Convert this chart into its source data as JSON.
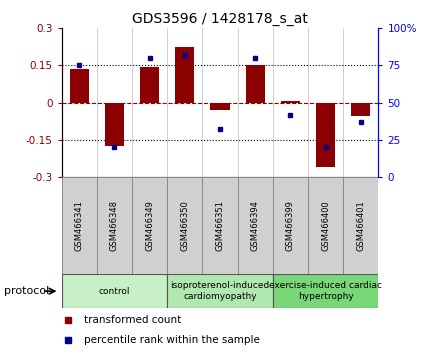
{
  "title": "GDS3596 / 1428178_s_at",
  "samples": [
    "GSM466341",
    "GSM466348",
    "GSM466349",
    "GSM466350",
    "GSM466351",
    "GSM466394",
    "GSM466399",
    "GSM466400",
    "GSM466401"
  ],
  "bar_values": [
    0.135,
    -0.175,
    0.145,
    0.225,
    -0.03,
    0.15,
    0.005,
    -0.26,
    -0.055
  ],
  "dot_values": [
    75,
    20,
    80,
    82,
    32,
    80,
    42,
    20,
    37
  ],
  "left_ylim": [
    -0.3,
    0.3
  ],
  "right_ylim": [
    0,
    100
  ],
  "left_yticks": [
    -0.3,
    -0.15,
    0,
    0.15,
    0.3
  ],
  "right_yticks": [
    0,
    25,
    50,
    75,
    100
  ],
  "hlines_dotted": [
    -0.15,
    0.15
  ],
  "hline_dashed": 0,
  "bar_color": "#8B0000",
  "dot_color": "#00008B",
  "title_fontsize": 10,
  "groups": [
    {
      "label": "control",
      "start": 0,
      "end": 3,
      "color": "#c8f0c8"
    },
    {
      "label": "isoproterenol-induced\ncardiomyopathy",
      "start": 3,
      "end": 6,
      "color": "#b0e8b0"
    },
    {
      "label": "exercise-induced cardiac\nhypertrophy",
      "start": 6,
      "end": 9,
      "color": "#78d878"
    }
  ],
  "protocol_label": "protocol",
  "legend_bar_label": "transformed count",
  "legend_dot_label": "percentile rank within the sample",
  "sample_box_color": "#d0d0d0",
  "sample_box_edge": "#888888"
}
